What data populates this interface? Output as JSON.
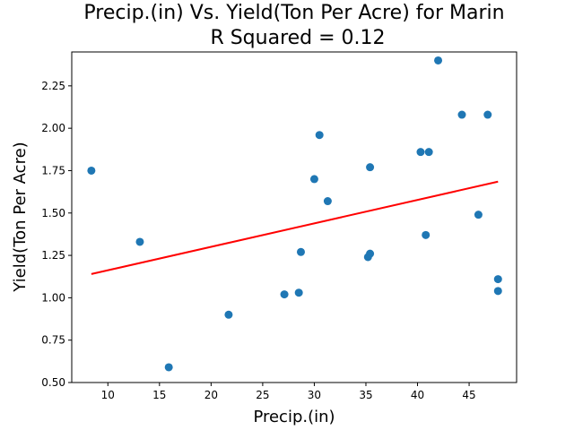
{
  "chart_data": {
    "type": "scatter",
    "title": "Precip.(in) Vs. Yield(Ton Per Acre) for Marin",
    "subtitle": "R Squared =  0.12",
    "xlabel": "Precip.(in)",
    "ylabel": "Yield(Ton Per Acre)",
    "xlim": [
      6.5,
      49.6
    ],
    "ylim": [
      0.5,
      2.45
    ],
    "xticks": [
      10,
      15,
      20,
      25,
      30,
      35,
      40,
      45
    ],
    "yticks": [
      0.5,
      0.75,
      1.0,
      1.25,
      1.5,
      1.75,
      2.0,
      2.25
    ],
    "xtick_labels": [
      "10",
      "15",
      "20",
      "25",
      "30",
      "35",
      "40",
      "45"
    ],
    "ytick_labels": [
      "0.50",
      "0.75",
      "1.00",
      "1.25",
      "1.50",
      "1.75",
      "2.00",
      "2.25"
    ],
    "grid": false,
    "points": {
      "color": "#1f77b4",
      "x": [
        8.4,
        13.1,
        15.9,
        21.7,
        27.1,
        28.5,
        28.7,
        30.0,
        30.5,
        31.3,
        35.2,
        35.4,
        35.4,
        40.3,
        40.8,
        41.1,
        42.0,
        44.3,
        45.9,
        46.8,
        47.8,
        47.8
      ],
      "y": [
        1.75,
        1.33,
        0.59,
        0.9,
        1.02,
        1.03,
        1.27,
        1.7,
        1.96,
        1.57,
        1.24,
        1.26,
        1.77,
        1.86,
        1.37,
        1.86,
        2.4,
        2.08,
        1.49,
        2.08,
        1.11,
        1.04
      ]
    },
    "regression": {
      "color": "#ff0000",
      "x": [
        8.4,
        47.8
      ],
      "y": [
        1.14,
        1.685
      ]
    }
  }
}
